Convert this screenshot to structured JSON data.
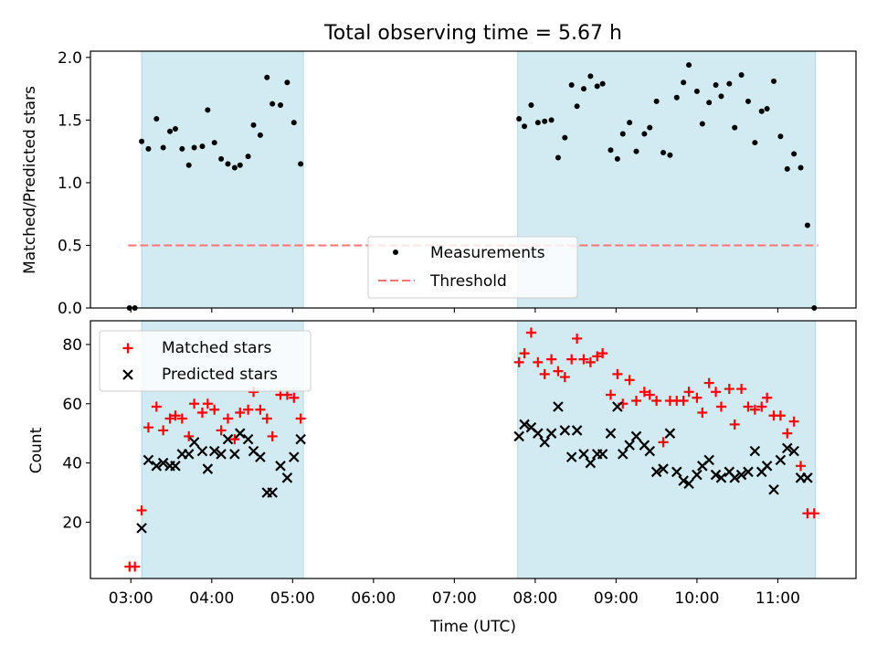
{
  "chart_data": [
    {
      "type": "scatter",
      "title": "Total observing time = 5.67 h",
      "ylabel": "Matched/Predicted stars",
      "xlabel": "",
      "xlim": [
        "02:30",
        "11:58"
      ],
      "ylim": [
        0,
        2.05
      ],
      "y_ticks": [
        "0.0",
        "0.5",
        "1.0",
        "1.5",
        "2.0"
      ],
      "shaded_intervals": [
        [
          "03:08",
          "05:08"
        ],
        [
          "07:47",
          "11:28"
        ]
      ],
      "shade_color": "#add8e6",
      "legend": {
        "placement": "lower center",
        "entries": [
          "Measurements",
          "Threshold"
        ]
      },
      "threshold": {
        "name": "Threshold",
        "y": 0.5,
        "x_range": [
          "02:58",
          "11:30"
        ],
        "color": "#ff7373",
        "style": "dashed"
      },
      "series": [
        {
          "name": "Measurements",
          "marker": "dot",
          "color": "#000000",
          "points": [
            [
              "02:59",
              0.0
            ],
            [
              "03:03",
              0.0
            ],
            [
              "03:08",
              1.33
            ],
            [
              "03:13",
              1.27
            ],
            [
              "03:19",
              1.51
            ],
            [
              "03:24",
              1.28
            ],
            [
              "03:29",
              1.41
            ],
            [
              "03:33",
              1.43
            ],
            [
              "03:38",
              1.27
            ],
            [
              "03:43",
              1.14
            ],
            [
              "03:47",
              1.28
            ],
            [
              "03:53",
              1.29
            ],
            [
              "03:57",
              1.58
            ],
            [
              "04:02",
              1.32
            ],
            [
              "04:07",
              1.19
            ],
            [
              "04:12",
              1.15
            ],
            [
              "04:17",
              1.12
            ],
            [
              "04:21",
              1.14
            ],
            [
              "04:27",
              1.21
            ],
            [
              "04:31",
              1.46
            ],
            [
              "04:36",
              1.38
            ],
            [
              "04:41",
              1.84
            ],
            [
              "04:45",
              1.63
            ],
            [
              "04:51",
              1.62
            ],
            [
              "04:56",
              1.8
            ],
            [
              "05:01",
              1.48
            ],
            [
              "05:06",
              1.15
            ],
            [
              "07:48",
              1.51
            ],
            [
              "07:52",
              1.45
            ],
            [
              "07:57",
              1.62
            ],
            [
              "08:02",
              1.48
            ],
            [
              "08:07",
              1.49
            ],
            [
              "08:12",
              1.5
            ],
            [
              "08:17",
              1.2
            ],
            [
              "08:22",
              1.36
            ],
            [
              "08:27",
              1.78
            ],
            [
              "08:31",
              1.61
            ],
            [
              "08:36",
              1.75
            ],
            [
              "08:41",
              1.85
            ],
            [
              "08:46",
              1.77
            ],
            [
              "08:50",
              1.79
            ],
            [
              "08:56",
              1.26
            ],
            [
              "09:01",
              1.19
            ],
            [
              "09:05",
              1.39
            ],
            [
              "09:10",
              1.48
            ],
            [
              "09:15",
              1.25
            ],
            [
              "09:21",
              1.39
            ],
            [
              "09:25",
              1.44
            ],
            [
              "09:30",
              1.65
            ],
            [
              "09:35",
              1.24
            ],
            [
              "09:40",
              1.22
            ],
            [
              "09:45",
              1.68
            ],
            [
              "09:50",
              1.8
            ],
            [
              "09:54",
              1.94
            ],
            [
              "10:00",
              1.73
            ],
            [
              "10:04",
              1.47
            ],
            [
              "10:09",
              1.64
            ],
            [
              "10:14",
              1.78
            ],
            [
              "10:18",
              1.69
            ],
            [
              "10:24",
              1.79
            ],
            [
              "10:28",
              1.44
            ],
            [
              "10:33",
              1.86
            ],
            [
              "10:38",
              1.65
            ],
            [
              "10:43",
              1.32
            ],
            [
              "10:48",
              1.57
            ],
            [
              "10:52",
              1.59
            ],
            [
              "10:57",
              1.81
            ],
            [
              "11:02",
              1.37
            ],
            [
              "11:07",
              1.11
            ],
            [
              "11:12",
              1.23
            ],
            [
              "11:17",
              1.12
            ],
            [
              "11:22",
              0.66
            ],
            [
              "11:27",
              0.0
            ]
          ]
        }
      ]
    },
    {
      "type": "scatter",
      "title": "",
      "xlabel": "Time (UTC)",
      "ylabel": "Count",
      "xlim": [
        "02:30",
        "11:58"
      ],
      "ylim": [
        1,
        88
      ],
      "y_ticks": [
        "20",
        "40",
        "60",
        "80"
      ],
      "x_ticks": [
        "03:00",
        "04:00",
        "05:00",
        "06:00",
        "07:00",
        "08:00",
        "09:00",
        "10:00",
        "11:00"
      ],
      "shaded_intervals": [
        [
          "03:08",
          "05:08"
        ],
        [
          "07:47",
          "11:28"
        ]
      ],
      "shade_color": "#add8e6",
      "legend": {
        "placement": "upper left",
        "entries": [
          "Matched stars",
          "Predicted stars"
        ]
      },
      "series": [
        {
          "name": "Matched stars",
          "marker": "plus",
          "color": "#ff0000",
          "points": [
            [
              "02:59",
              5
            ],
            [
              "03:03",
              5
            ],
            [
              "03:08",
              24
            ],
            [
              "03:13",
              52
            ],
            [
              "03:19",
              59
            ],
            [
              "03:24",
              51
            ],
            [
              "03:29",
              55
            ],
            [
              "03:33",
              56
            ],
            [
              "03:38",
              55
            ],
            [
              "03:43",
              49
            ],
            [
              "03:47",
              60
            ],
            [
              "03:53",
              57
            ],
            [
              "03:57",
              60
            ],
            [
              "04:02",
              58
            ],
            [
              "04:07",
              51
            ],
            [
              "04:12",
              55
            ],
            [
              "04:17",
              48
            ],
            [
              "04:21",
              57
            ],
            [
              "04:27",
              58
            ],
            [
              "04:31",
              64
            ],
            [
              "04:36",
              58
            ],
            [
              "04:41",
              55
            ],
            [
              "04:45",
              49
            ],
            [
              "04:51",
              63
            ],
            [
              "04:56",
              63
            ],
            [
              "05:01",
              62
            ],
            [
              "05:06",
              55
            ],
            [
              "07:48",
              74
            ],
            [
              "07:52",
              77
            ],
            [
              "07:57",
              84
            ],
            [
              "08:02",
              74
            ],
            [
              "08:07",
              70
            ],
            [
              "08:12",
              75
            ],
            [
              "08:17",
              71
            ],
            [
              "08:22",
              69
            ],
            [
              "08:27",
              75
            ],
            [
              "08:31",
              82
            ],
            [
              "08:36",
              75
            ],
            [
              "08:41",
              74
            ],
            [
              "08:46",
              76
            ],
            [
              "08:50",
              77
            ],
            [
              "08:56",
              63
            ],
            [
              "09:01",
              70
            ],
            [
              "09:05",
              60
            ],
            [
              "09:10",
              68
            ],
            [
              "09:15",
              61
            ],
            [
              "09:21",
              64
            ],
            [
              "09:25",
              63
            ],
            [
              "09:30",
              61
            ],
            [
              "09:35",
              47
            ],
            [
              "09:40",
              61
            ],
            [
              "09:45",
              61
            ],
            [
              "09:50",
              61
            ],
            [
              "09:54",
              64
            ],
            [
              "10:00",
              62
            ],
            [
              "10:04",
              57
            ],
            [
              "10:09",
              67
            ],
            [
              "10:14",
              64
            ],
            [
              "10:18",
              59
            ],
            [
              "10:24",
              65
            ],
            [
              "10:28",
              53
            ],
            [
              "10:33",
              65
            ],
            [
              "10:38",
              59
            ],
            [
              "10:43",
              58
            ],
            [
              "10:48",
              59
            ],
            [
              "10:52",
              62
            ],
            [
              "10:57",
              56
            ],
            [
              "11:02",
              56
            ],
            [
              "11:07",
              50
            ],
            [
              "11:12",
              54
            ],
            [
              "11:17",
              39
            ],
            [
              "11:22",
              23
            ],
            [
              "11:27",
              23
            ]
          ]
        },
        {
          "name": "Predicted stars",
          "marker": "x",
          "color": "#000000",
          "points": [
            [
              "03:08",
              18
            ],
            [
              "03:13",
              41
            ],
            [
              "03:19",
              39
            ],
            [
              "03:24",
              40
            ],
            [
              "03:29",
              39
            ],
            [
              "03:33",
              39
            ],
            [
              "03:38",
              43
            ],
            [
              "03:43",
              43
            ],
            [
              "03:47",
              47
            ],
            [
              "03:53",
              44
            ],
            [
              "03:57",
              38
            ],
            [
              "04:02",
              44
            ],
            [
              "04:07",
              43
            ],
            [
              "04:12",
              48
            ],
            [
              "04:17",
              43
            ],
            [
              "04:21",
              50
            ],
            [
              "04:27",
              48
            ],
            [
              "04:31",
              44
            ],
            [
              "04:36",
              42
            ],
            [
              "04:41",
              30
            ],
            [
              "04:45",
              30
            ],
            [
              "04:51",
              39
            ],
            [
              "04:56",
              35
            ],
            [
              "05:01",
              42
            ],
            [
              "05:06",
              48
            ],
            [
              "07:48",
              49
            ],
            [
              "07:52",
              53
            ],
            [
              "07:57",
              52
            ],
            [
              "08:02",
              50
            ],
            [
              "08:07",
              47
            ],
            [
              "08:12",
              50
            ],
            [
              "08:17",
              59
            ],
            [
              "08:22",
              51
            ],
            [
              "08:27",
              42
            ],
            [
              "08:31",
              51
            ],
            [
              "08:36",
              43
            ],
            [
              "08:41",
              40
            ],
            [
              "08:46",
              43
            ],
            [
              "08:50",
              43
            ],
            [
              "08:56",
              50
            ],
            [
              "09:01",
              59
            ],
            [
              "09:05",
              43
            ],
            [
              "09:10",
              46
            ],
            [
              "09:15",
              49
            ],
            [
              "09:21",
              46
            ],
            [
              "09:25",
              44
            ],
            [
              "09:30",
              37
            ],
            [
              "09:35",
              38
            ],
            [
              "09:40",
              50
            ],
            [
              "09:45",
              37
            ],
            [
              "09:50",
              34
            ],
            [
              "09:54",
              33
            ],
            [
              "10:00",
              36
            ],
            [
              "10:04",
              39
            ],
            [
              "10:09",
              41
            ],
            [
              "10:14",
              36
            ],
            [
              "10:18",
              35
            ],
            [
              "10:24",
              37
            ],
            [
              "10:28",
              35
            ],
            [
              "10:33",
              36
            ],
            [
              "10:38",
              37
            ],
            [
              "10:43",
              44
            ],
            [
              "10:48",
              37
            ],
            [
              "10:52",
              39
            ],
            [
              "10:57",
              31
            ],
            [
              "11:02",
              41
            ],
            [
              "11:07",
              45
            ],
            [
              "11:12",
              44
            ],
            [
              "11:17",
              35
            ],
            [
              "11:22",
              35
            ]
          ]
        }
      ]
    }
  ]
}
